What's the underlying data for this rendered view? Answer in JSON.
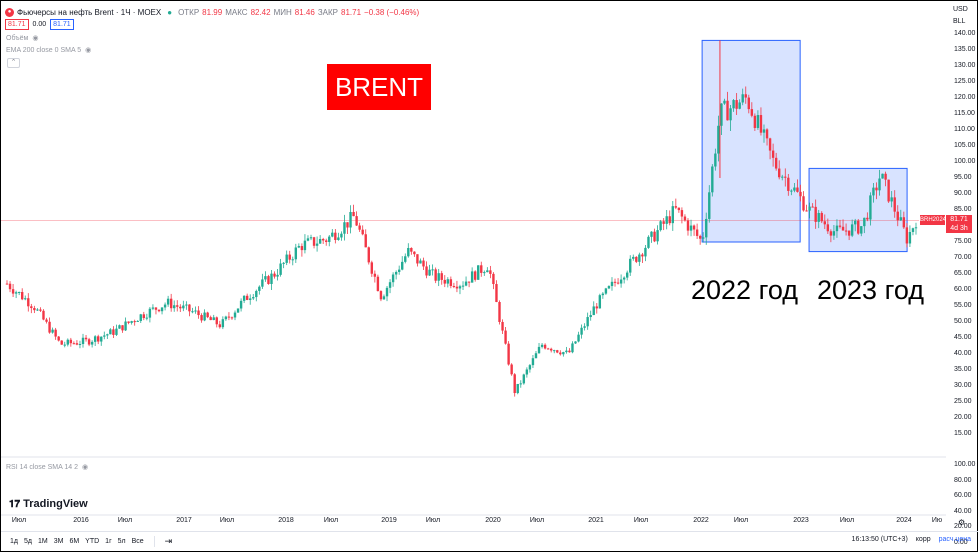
{
  "header": {
    "symbol_title": "Фьючерсы на нефть Brent · 1Ч · MOEX",
    "ohlc": [
      {
        "label": "ОТКР",
        "value": "81.99"
      },
      {
        "label": "МАКС",
        "value": "82.42"
      },
      {
        "label": "МИН",
        "value": "81.46"
      },
      {
        "label": "ЗАКР",
        "value": "81.71"
      }
    ],
    "change": "−0.38 (−0.46%)",
    "sell_price": "81.71",
    "spread": "0.00",
    "buy_price": "81.71"
  },
  "indicators": {
    "volume": "Объём",
    "ema": "EMA 200 close 0 SMA 5",
    "rsi": "RSI 14 close SMA 14 2"
  },
  "overlays": {
    "brent_label": "BRENT",
    "year_2022": "2022 год",
    "year_2023": "2023 год"
  },
  "price_axis": {
    "currency": "USD",
    "unit": "BLL",
    "labels": [
      "140.00",
      "135.00",
      "130.00",
      "125.00",
      "120.00",
      "115.00",
      "110.00",
      "105.00",
      "100.00",
      "95.00",
      "90.00",
      "85.00",
      "80.00",
      "75.00",
      "70.00",
      "65.00",
      "60.00",
      "55.00",
      "50.00",
      "45.00",
      "40.00",
      "35.00",
      "30.00",
      "25.00",
      "20.00",
      "15.00"
    ],
    "rsi_labels": [
      "100.00",
      "80.00",
      "60.00",
      "40.00",
      "20.00",
      "0.00"
    ],
    "last_ticker": "BRH2024",
    "last_price": "81.71",
    "countdown": "4d 3h"
  },
  "time_axis": [
    "Июл",
    "2016",
    "Июл",
    "2017",
    "Июл",
    "2018",
    "Июл",
    "2019",
    "Июл",
    "2020",
    "Июл",
    "2021",
    "Июл",
    "2022",
    "Июл",
    "2023",
    "Июл",
    "2024",
    "Ию"
  ],
  "bottom": {
    "ranges": [
      "1д",
      "5д",
      "1М",
      "3М",
      "6М",
      "YTD",
      "1г",
      "5л",
      "Все"
    ],
    "time": "16:13:50 (UTC+3)",
    "adj": "корр",
    "settlement": "расч.цена"
  },
  "brand": "TradingView",
  "colors": {
    "up": "#22ab94",
    "down": "#f23645",
    "box": "#2962ff"
  },
  "chart_data": {
    "type": "candlestick",
    "y_range": [
      15,
      140
    ],
    "x": [
      "2015-07",
      "2015-10",
      "2016-01",
      "2016-04",
      "2016-07",
      "2016-10",
      "2017-01",
      "2017-04",
      "2017-07",
      "2017-10",
      "2018-01",
      "2018-04",
      "2018-07",
      "2018-10",
      "2019-01",
      "2019-04",
      "2019-07",
      "2019-10",
      "2020-01",
      "2020-04",
      "2020-07",
      "2020-10",
      "2021-01",
      "2021-04",
      "2021-07",
      "2021-10",
      "2022-01",
      "2022-03",
      "2022-06",
      "2022-09",
      "2023-01",
      "2023-04",
      "2023-07",
      "2023-09",
      "2023-12",
      "2024-01"
    ],
    "close": [
      62,
      55,
      43,
      44,
      47,
      52,
      56,
      53,
      49,
      58,
      65,
      74,
      76,
      83,
      58,
      72,
      64,
      62,
      68,
      28,
      43,
      40,
      55,
      65,
      75,
      85,
      75,
      115,
      120,
      100,
      85,
      78,
      80,
      96,
      76,
      82
    ],
    "boxes": [
      {
        "label": "2022 год",
        "x_range": [
          "2022-01",
          "2022-12"
        ],
        "y_range": [
          75,
          138
        ]
      },
      {
        "label": "2023 год",
        "x_range": [
          "2023-01",
          "2023-12"
        ],
        "y_range": [
          72,
          98
        ]
      }
    ]
  }
}
